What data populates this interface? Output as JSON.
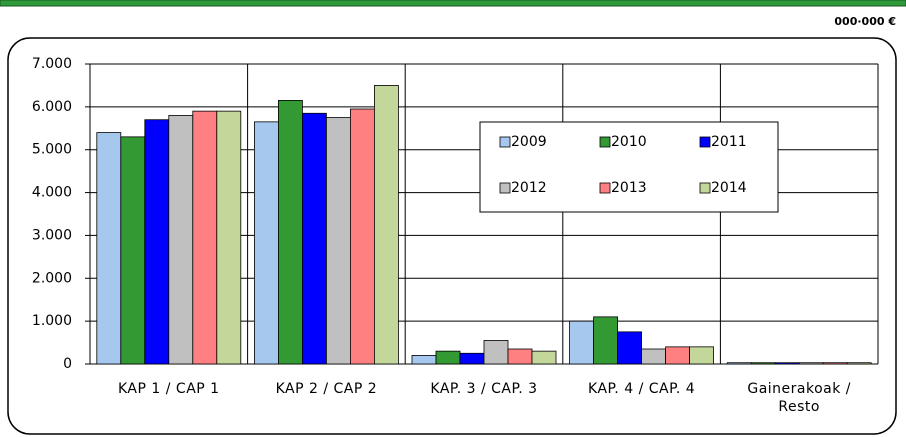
{
  "chart_data": {
    "type": "bar",
    "unit_label": "000·000 €",
    "categories": [
      "KAP 1 / CAP 1",
      "KAP 2 / CAP 2",
      "KAP. 3 / CAP. 3",
      "KAP. 4 / CAP. 4",
      "Gainerakoak / Resto"
    ],
    "series": [
      {
        "name": "2009",
        "color": "#a6c8ee",
        "values": [
          5400,
          5650,
          200,
          1000,
          30
        ]
      },
      {
        "name": "2010",
        "color": "#339933",
        "values": [
          5300,
          6150,
          300,
          1100,
          30
        ]
      },
      {
        "name": "2011",
        "color": "#0000ff",
        "values": [
          5700,
          5850,
          250,
          750,
          30
        ]
      },
      {
        "name": "2012",
        "color": "#c0c0c0",
        "values": [
          5800,
          5750,
          550,
          350,
          30
        ]
      },
      {
        "name": "2013",
        "color": "#ff8080",
        "values": [
          5900,
          5950,
          350,
          400,
          30
        ]
      },
      {
        "name": "2014",
        "color": "#c4d79b",
        "values": [
          5900,
          6500,
          300,
          400,
          30
        ]
      }
    ],
    "ylim": [
      0,
      7000
    ],
    "yticks": [
      0,
      {
        "value": 1000,
        "label": "1.000"
      },
      {
        "value": 2000,
        "label": "2.000"
      },
      {
        "value": 3000,
        "label": "3.000"
      },
      {
        "value": 4000,
        "label": "4.000"
      },
      {
        "value": 5000,
        "label": "5.000"
      },
      {
        "value": 6000,
        "label": "6.000"
      },
      {
        "value": 7000,
        "label": "7.000"
      }
    ],
    "grid": true,
    "legend": "inside"
  }
}
